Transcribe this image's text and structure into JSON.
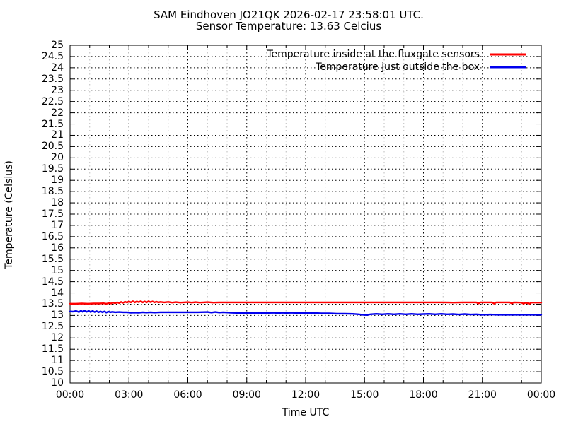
{
  "header": {
    "title": "SAM Eindhoven JO21QK 2026-02-17 23:58:01 UTC.",
    "subtitle": "Sensor Temperature: 13.63 Celcius"
  },
  "chart_data": {
    "type": "line",
    "title": "SAM Eindhoven JO21QK 2026-02-17 23:58:01 UTC.",
    "subtitle": "Sensor Temperature: 13.63 Celcius",
    "xlabel": "Time UTC",
    "ylabel": "Temperature (Celsius)",
    "xlim_hours": [
      0,
      24
    ],
    "ylim": [
      10,
      25
    ],
    "ytick_step": 0.5,
    "xtick_hours": [
      0,
      3,
      6,
      9,
      12,
      15,
      18,
      21,
      24
    ],
    "xtick_labels": [
      "00:00",
      "03:00",
      "06:00",
      "09:00",
      "12:00",
      "15:00",
      "18:00",
      "21:00",
      "00:00"
    ],
    "minor_xtick_every_hours": 1,
    "grid": {
      "major_color": "#000000",
      "minor_color": "#bbbbbb",
      "style": "dashed",
      "frame_color": "#000000"
    },
    "legend_position": "top-right-inside",
    "series": [
      {
        "name": "Temperature inside at the fluxgate sensors",
        "color": "#ff0000",
        "points": [
          [
            0,
            13.52
          ],
          [
            0.3,
            13.52
          ],
          [
            0.6,
            13.53
          ],
          [
            0.9,
            13.52
          ],
          [
            1.2,
            13.53
          ],
          [
            1.5,
            13.53
          ],
          [
            1.7,
            13.54
          ],
          [
            1.85,
            13.52
          ],
          [
            2.0,
            13.55
          ],
          [
            2.1,
            13.53
          ],
          [
            2.2,
            13.57
          ],
          [
            2.3,
            13.54
          ],
          [
            2.4,
            13.58
          ],
          [
            2.5,
            13.55
          ],
          [
            2.6,
            13.6
          ],
          [
            2.7,
            13.56
          ],
          [
            2.8,
            13.61
          ],
          [
            2.9,
            13.57
          ],
          [
            3.0,
            13.62
          ],
          [
            3.1,
            13.58
          ],
          [
            3.2,
            13.63
          ],
          [
            3.3,
            13.58
          ],
          [
            3.4,
            13.62
          ],
          [
            3.5,
            13.59
          ],
          [
            3.6,
            13.63
          ],
          [
            3.7,
            13.58
          ],
          [
            3.8,
            13.62
          ],
          [
            3.9,
            13.58
          ],
          [
            4.0,
            13.63
          ],
          [
            4.1,
            13.59
          ],
          [
            4.2,
            13.62
          ],
          [
            4.3,
            13.58
          ],
          [
            4.4,
            13.61
          ],
          [
            4.5,
            13.58
          ],
          [
            4.6,
            13.6
          ],
          [
            4.8,
            13.58
          ],
          [
            5.0,
            13.6
          ],
          [
            5.2,
            13.57
          ],
          [
            5.4,
            13.59
          ],
          [
            5.6,
            13.57
          ],
          [
            5.8,
            13.58
          ],
          [
            6.0,
            13.59
          ],
          [
            6.2,
            13.57
          ],
          [
            6.4,
            13.59
          ],
          [
            6.6,
            13.57
          ],
          [
            6.8,
            13.58
          ],
          [
            7.0,
            13.59
          ],
          [
            7.3,
            13.57
          ],
          [
            7.6,
            13.58
          ],
          [
            8.0,
            13.58
          ],
          [
            9.0,
            13.58
          ],
          [
            10.0,
            13.58
          ],
          [
            11.0,
            13.58
          ],
          [
            12.0,
            13.58
          ],
          [
            13.0,
            13.58
          ],
          [
            14.0,
            13.58
          ],
          [
            15.0,
            13.58
          ],
          [
            16.0,
            13.58
          ],
          [
            17.0,
            13.58
          ],
          [
            18.0,
            13.58
          ],
          [
            19.0,
            13.58
          ],
          [
            19.5,
            13.57
          ],
          [
            20.0,
            13.58
          ],
          [
            20.7,
            13.58
          ],
          [
            20.8,
            13.53
          ],
          [
            20.9,
            13.58
          ],
          [
            21.5,
            13.58
          ],
          [
            21.6,
            13.52
          ],
          [
            21.7,
            13.58
          ],
          [
            22.4,
            13.58
          ],
          [
            22.5,
            13.53
          ],
          [
            22.6,
            13.58
          ],
          [
            23.0,
            13.57
          ],
          [
            23.1,
            13.52
          ],
          [
            23.2,
            13.57
          ],
          [
            23.4,
            13.52
          ],
          [
            23.5,
            13.57
          ],
          [
            24.0,
            13.57
          ]
        ]
      },
      {
        "name": "Temperature just outside the box",
        "color": "#0000ee",
        "points": [
          [
            0,
            13.18
          ],
          [
            0.15,
            13.17
          ],
          [
            0.3,
            13.2
          ],
          [
            0.45,
            13.15
          ],
          [
            0.55,
            13.21
          ],
          [
            0.65,
            13.16
          ],
          [
            0.75,
            13.22
          ],
          [
            0.85,
            13.16
          ],
          [
            0.95,
            13.2
          ],
          [
            1.05,
            13.15
          ],
          [
            1.15,
            13.2
          ],
          [
            1.25,
            13.15
          ],
          [
            1.35,
            13.19
          ],
          [
            1.45,
            13.14
          ],
          [
            1.55,
            13.18
          ],
          [
            1.65,
            13.14
          ],
          [
            1.75,
            13.18
          ],
          [
            1.85,
            13.13
          ],
          [
            1.95,
            13.17
          ],
          [
            2.05,
            13.14
          ],
          [
            2.15,
            13.16
          ],
          [
            2.3,
            13.14
          ],
          [
            2.5,
            13.15
          ],
          [
            2.7,
            13.14
          ],
          [
            2.9,
            13.14
          ],
          [
            3.1,
            13.12
          ],
          [
            3.3,
            13.13
          ],
          [
            3.5,
            13.12
          ],
          [
            3.7,
            13.14
          ],
          [
            3.9,
            13.13
          ],
          [
            4.1,
            13.14
          ],
          [
            4.3,
            13.13
          ],
          [
            4.6,
            13.14
          ],
          [
            5.0,
            13.14
          ],
          [
            5.5,
            13.14
          ],
          [
            6.0,
            13.14
          ],
          [
            6.5,
            13.14
          ],
          [
            7.0,
            13.15
          ],
          [
            7.2,
            13.13
          ],
          [
            7.4,
            13.15
          ],
          [
            7.6,
            13.13
          ],
          [
            7.8,
            13.14
          ],
          [
            8.2,
            13.12
          ],
          [
            8.6,
            13.11
          ],
          [
            9.0,
            13.11
          ],
          [
            9.5,
            13.11
          ],
          [
            10.0,
            13.11
          ],
          [
            10.4,
            13.12
          ],
          [
            10.6,
            13.1
          ],
          [
            10.8,
            13.12
          ],
          [
            11.0,
            13.11
          ],
          [
            11.3,
            13.12
          ],
          [
            11.6,
            13.1
          ],
          [
            12.0,
            13.1
          ],
          [
            12.4,
            13.11
          ],
          [
            12.8,
            13.09
          ],
          [
            13.2,
            13.09
          ],
          [
            13.6,
            13.08
          ],
          [
            14.0,
            13.08
          ],
          [
            14.4,
            13.07
          ],
          [
            14.7,
            13.05
          ],
          [
            14.9,
            13.03
          ],
          [
            15.1,
            13.02
          ],
          [
            15.3,
            13.05
          ],
          [
            15.6,
            13.07
          ],
          [
            15.9,
            13.05
          ],
          [
            16.2,
            13.07
          ],
          [
            16.5,
            13.05
          ],
          [
            16.8,
            13.07
          ],
          [
            17.1,
            13.05
          ],
          [
            17.4,
            13.07
          ],
          [
            17.7,
            13.05
          ],
          [
            18.0,
            13.06
          ],
          [
            18.3,
            13.07
          ],
          [
            18.6,
            13.05
          ],
          [
            18.9,
            13.07
          ],
          [
            19.2,
            13.05
          ],
          [
            19.5,
            13.06
          ],
          [
            19.8,
            13.04
          ],
          [
            20.1,
            13.06
          ],
          [
            20.4,
            13.04
          ],
          [
            20.7,
            13.05
          ],
          [
            21.0,
            13.03
          ],
          [
            21.4,
            13.04
          ],
          [
            21.8,
            13.03
          ],
          [
            22.2,
            13.03
          ],
          [
            22.6,
            13.03
          ],
          [
            23.0,
            13.03
          ],
          [
            23.4,
            13.03
          ],
          [
            23.7,
            13.03
          ],
          [
            24.0,
            13.03
          ]
        ]
      }
    ]
  }
}
